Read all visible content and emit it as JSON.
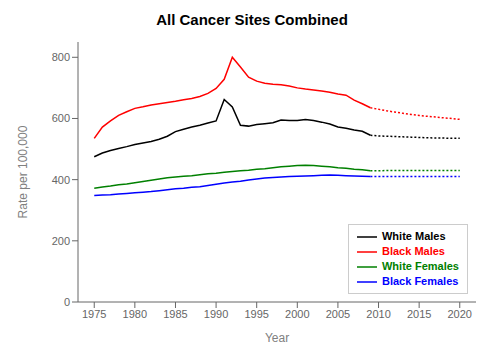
{
  "chart_data": {
    "type": "line",
    "title": "All Cancer Sites Combined",
    "x_label": "Year",
    "y_label": "Rate per 100,000",
    "xlim": [
      1973,
      2022
    ],
    "xticks": [
      1975,
      1980,
      1985,
      1990,
      1995,
      2000,
      2005,
      2010,
      2015,
      2020
    ],
    "ylim": [
      0,
      850
    ],
    "yticks": [
      0,
      200,
      400,
      600,
      800
    ],
    "grid": false,
    "legend": "lower right",
    "series": [
      {
        "name": "White Males",
        "color": "#000000",
        "line_style": "solid",
        "x": [
          1975,
          1976,
          1977,
          1978,
          1979,
          1980,
          1981,
          1982,
          1983,
          1984,
          1985,
          1986,
          1987,
          1988,
          1989,
          1990,
          1991,
          1992,
          1993,
          1994,
          1995,
          1996,
          1997,
          1998,
          1999,
          2000,
          2001,
          2002,
          2003,
          2004,
          2005,
          2006,
          2007,
          2008,
          2009
        ],
        "values": [
          475,
          487,
          495,
          502,
          508,
          515,
          520,
          525,
          532,
          542,
          557,
          565,
          572,
          578,
          585,
          592,
          662,
          638,
          578,
          575,
          580,
          583,
          586,
          595,
          593,
          593,
          597,
          593,
          588,
          582,
          572,
          568,
          562,
          558,
          545
        ]
      },
      {
        "name": "Black Males",
        "color": "#ff0000",
        "line_style": "solid",
        "x": [
          1975,
          1976,
          1977,
          1978,
          1979,
          1980,
          1981,
          1982,
          1983,
          1984,
          1985,
          1986,
          1987,
          1988,
          1989,
          1990,
          1991,
          1992,
          1993,
          1994,
          1995,
          1996,
          1997,
          1998,
          1999,
          2000,
          2001,
          2002,
          2003,
          2004,
          2005,
          2006,
          2007,
          2008,
          2009
        ],
        "values": [
          535,
          572,
          592,
          610,
          622,
          633,
          638,
          644,
          648,
          652,
          656,
          661,
          665,
          672,
          682,
          698,
          728,
          800,
          768,
          735,
          722,
          715,
          712,
          710,
          706,
          700,
          696,
          693,
          690,
          686,
          680,
          676,
          660,
          648,
          635
        ]
      },
      {
        "name": "White Females",
        "color": "#008000",
        "line_style": "solid",
        "x": [
          1975,
          1976,
          1977,
          1978,
          1979,
          1980,
          1981,
          1982,
          1983,
          1984,
          1985,
          1986,
          1987,
          1988,
          1989,
          1990,
          1991,
          1992,
          1993,
          1994,
          1995,
          1996,
          1997,
          1998,
          1999,
          2000,
          2001,
          2002,
          2003,
          2004,
          2005,
          2006,
          2007,
          2008,
          2009
        ],
        "values": [
          372,
          376,
          379,
          383,
          386,
          390,
          394,
          398,
          402,
          406,
          409,
          411,
          413,
          416,
          419,
          421,
          424,
          427,
          429,
          431,
          434,
          436,
          439,
          442,
          444,
          446,
          447,
          446,
          444,
          442,
          439,
          437,
          434,
          432,
          429
        ]
      },
      {
        "name": "Black Females",
        "color": "#0000ff",
        "line_style": "solid",
        "x": [
          1975,
          1976,
          1977,
          1978,
          1979,
          1980,
          1981,
          1982,
          1983,
          1984,
          1985,
          1986,
          1987,
          1988,
          1989,
          1990,
          1991,
          1992,
          1993,
          1994,
          1995,
          1996,
          1997,
          1998,
          1999,
          2000,
          2001,
          2002,
          2003,
          2004,
          2005,
          2006,
          2007,
          2008,
          2009
        ],
        "values": [
          348,
          350,
          351,
          353,
          355,
          357,
          359,
          361,
          364,
          367,
          370,
          372,
          375,
          377,
          381,
          385,
          389,
          392,
          395,
          399,
          402,
          405,
          407,
          409,
          410,
          411,
          412,
          413,
          414,
          415,
          414,
          413,
          412,
          411,
          410
        ]
      },
      {
        "color": "#000000",
        "line_style": "dotted",
        "x": [
          2009,
          2010,
          2011,
          2012,
          2013,
          2014,
          2015,
          2016,
          2017,
          2018,
          2019,
          2020
        ],
        "values": [
          545,
          543,
          542,
          541,
          540,
          539,
          538,
          537,
          536,
          536,
          535,
          535
        ]
      },
      {
        "color": "#ff0000",
        "line_style": "dotted",
        "x": [
          2009,
          2010,
          2011,
          2012,
          2013,
          2014,
          2015,
          2016,
          2017,
          2018,
          2019,
          2020
        ],
        "values": [
          635,
          630,
          625,
          621,
          617,
          613,
          610,
          607,
          605,
          602,
          600,
          597
        ]
      },
      {
        "color": "#008000",
        "line_style": "dotted",
        "x": [
          2009,
          2010,
          2011,
          2012,
          2013,
          2014,
          2015,
          2016,
          2017,
          2018,
          2019,
          2020
        ],
        "values": [
          429,
          429,
          430,
          430,
          430,
          430,
          430,
          430,
          430,
          430,
          430,
          430
        ]
      },
      {
        "color": "#0000ff",
        "line_style": "dotted",
        "x": [
          2009,
          2010,
          2011,
          2012,
          2013,
          2014,
          2015,
          2016,
          2017,
          2018,
          2019,
          2020
        ],
        "values": [
          410,
          410,
          410,
          410,
          410,
          410,
          410,
          410,
          410,
          410,
          410,
          410
        ]
      }
    ]
  }
}
